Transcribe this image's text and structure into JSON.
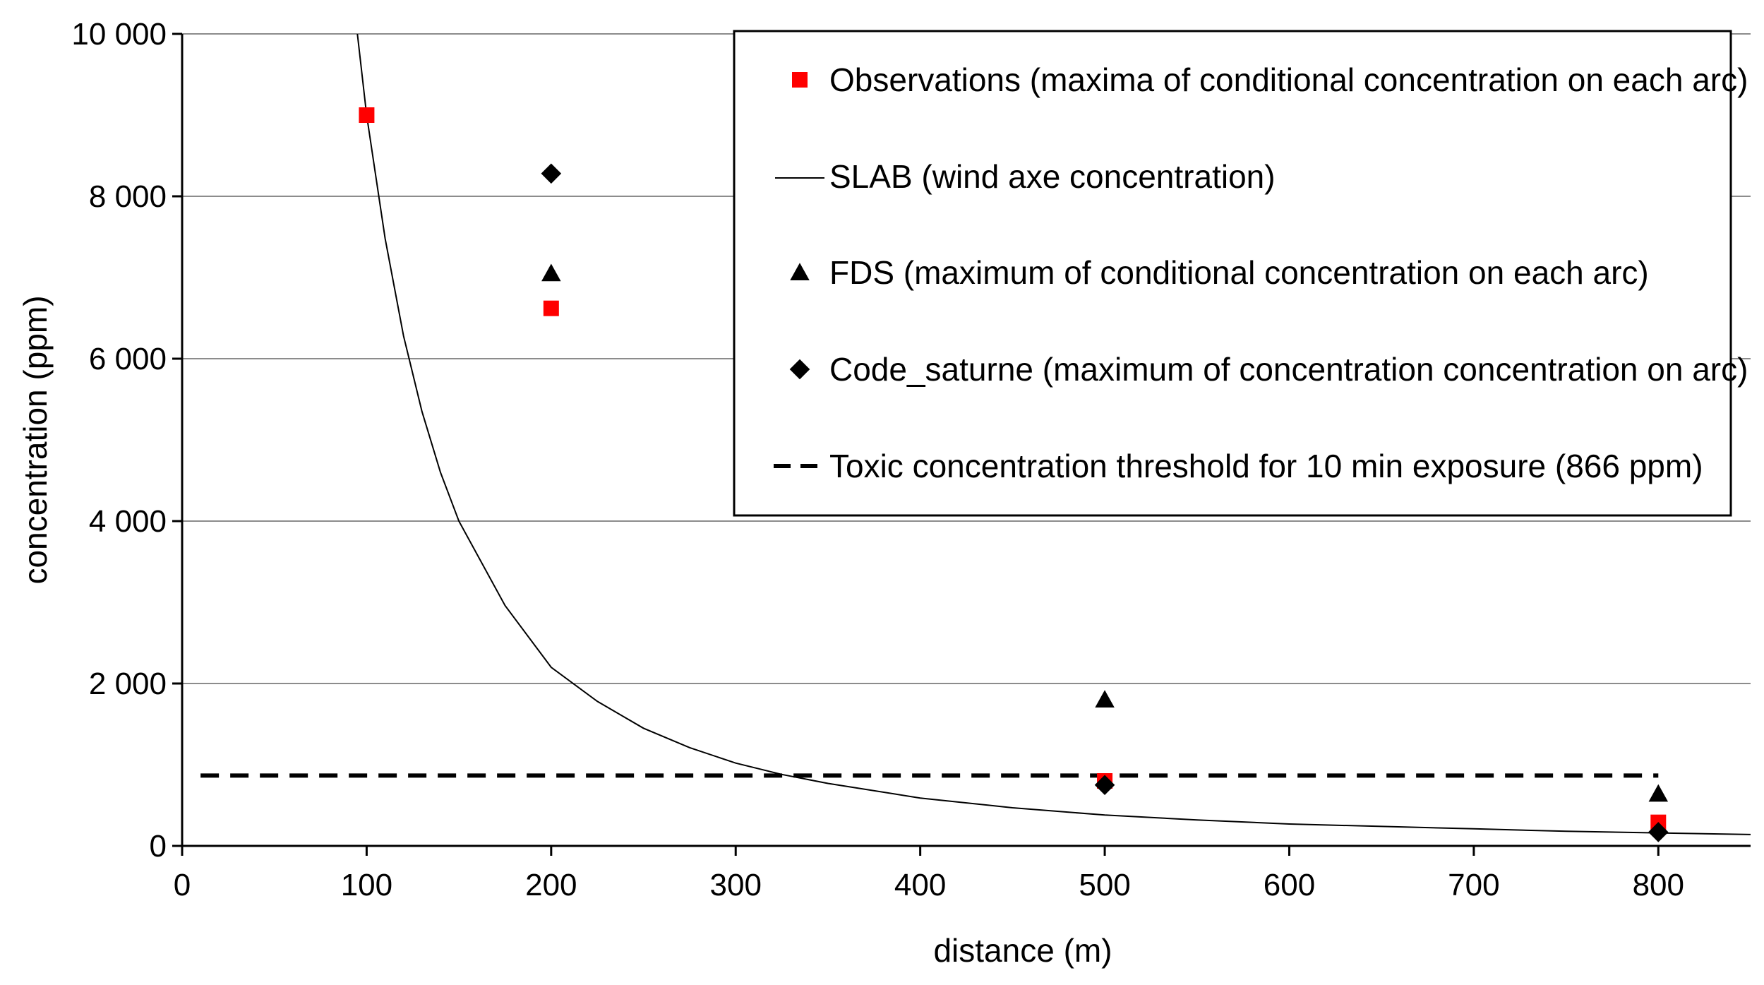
{
  "chart_data": {
    "type": "scatter",
    "title": "",
    "xlabel": "distance (m)",
    "ylabel": "concentration (ppm)",
    "xlim": [
      0,
      850
    ],
    "ylim": [
      0,
      10000
    ],
    "grid": true,
    "legend_position": "top-right",
    "x_ticks": [
      0,
      100,
      200,
      300,
      400,
      500,
      600,
      700,
      800
    ],
    "y_ticks": [
      0,
      2000,
      4000,
      6000,
      8000,
      10000
    ],
    "x_tick_labels": [
      "0",
      "100",
      "200",
      "300",
      "400",
      "500",
      "600",
      "700",
      "800"
    ],
    "y_tick_labels": [
      "0",
      "2 000",
      "4 000",
      "6 000",
      "8 000",
      "10 000"
    ],
    "series": [
      {
        "name": "Observations (maxima of conditional concentration on each arc)",
        "kind": "square",
        "color": "#ff0000",
        "x": [
          100,
          200,
          500,
          800
        ],
        "y": [
          9000,
          6620,
          800,
          290
        ]
      },
      {
        "name": "SLAB (wind axe concentration)",
        "kind": "line",
        "color": "#000000",
        "x": [
          95,
          100,
          110,
          120,
          130,
          140,
          150,
          175,
          200,
          225,
          250,
          275,
          300,
          325,
          350,
          400,
          450,
          500,
          550,
          600,
          650,
          700,
          750,
          800,
          850
        ],
        "y": [
          10000,
          9000,
          7480,
          6280,
          5350,
          4600,
          4000,
          2960,
          2200,
          1780,
          1450,
          1210,
          1020,
          880,
          770,
          590,
          470,
          380,
          320,
          270,
          240,
          210,
          180,
          160,
          140
        ]
      },
      {
        "name": "FDS (maximum of conditional concentration on each arc)",
        "kind": "triangle",
        "color": "#000000",
        "x": [
          200,
          500,
          800
        ],
        "y": [
          7050,
          1800,
          640
        ]
      },
      {
        "name": "Code_saturne (maximum of concentration concentration on arc)",
        "kind": "diamond",
        "color": "#000000",
        "x": [
          200,
          500,
          800
        ],
        "y": [
          8280,
          750,
          170
        ]
      },
      {
        "name": "Toxic concentration threshold for 10 min exposure (866 ppm)",
        "kind": "dashed",
        "color": "#000000",
        "x": [
          10,
          800
        ],
        "y": [
          866,
          866
        ]
      }
    ]
  }
}
